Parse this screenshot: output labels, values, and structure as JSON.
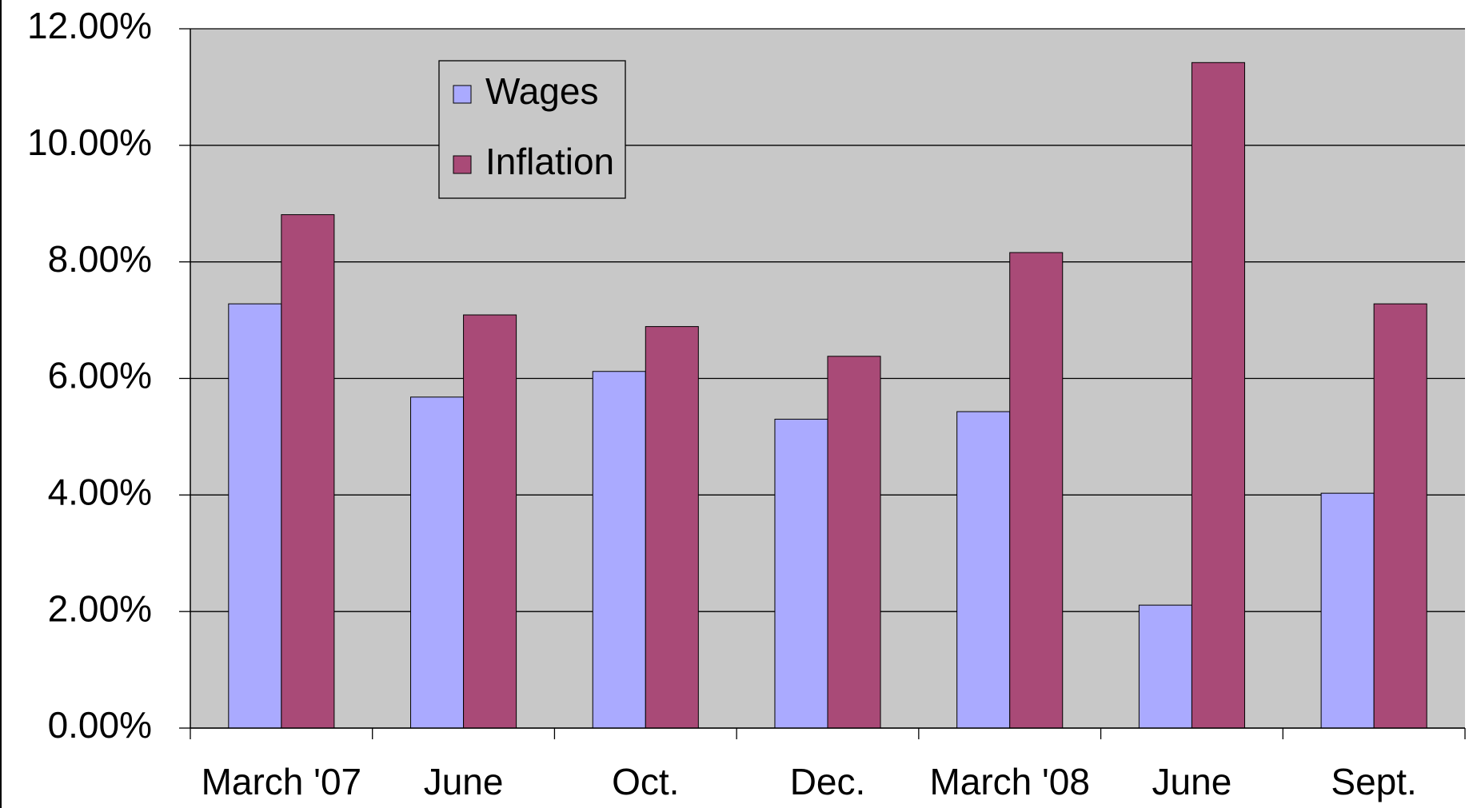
{
  "chart_data": {
    "type": "bar",
    "categories": [
      "March '07",
      "June",
      "Oct.",
      "Dec.",
      "March '08",
      "June",
      "Sept."
    ],
    "series": [
      {
        "name": "Wages",
        "color": "#aaaaff",
        "values": [
          7.28,
          5.68,
          6.12,
          5.3,
          5.43,
          2.11,
          4.03
        ]
      },
      {
        "name": "Inflation",
        "color": "#a94a77",
        "values": [
          8.81,
          7.09,
          6.89,
          6.38,
          8.16,
          11.42,
          7.28
        ]
      }
    ],
    "ylim": [
      0,
      12
    ],
    "yticks": [
      {
        "value": 0,
        "label": "0.00%"
      },
      {
        "value": 2,
        "label": "2.00%"
      },
      {
        "value": 4,
        "label": "4.00%"
      },
      {
        "value": 6,
        "label": "6.00%"
      },
      {
        "value": 8,
        "label": "8.00%"
      },
      {
        "value": 10,
        "label": "10.00%"
      },
      {
        "value": 12,
        "label": "12.00%"
      }
    ],
    "grid": true,
    "legend": "upper left"
  }
}
